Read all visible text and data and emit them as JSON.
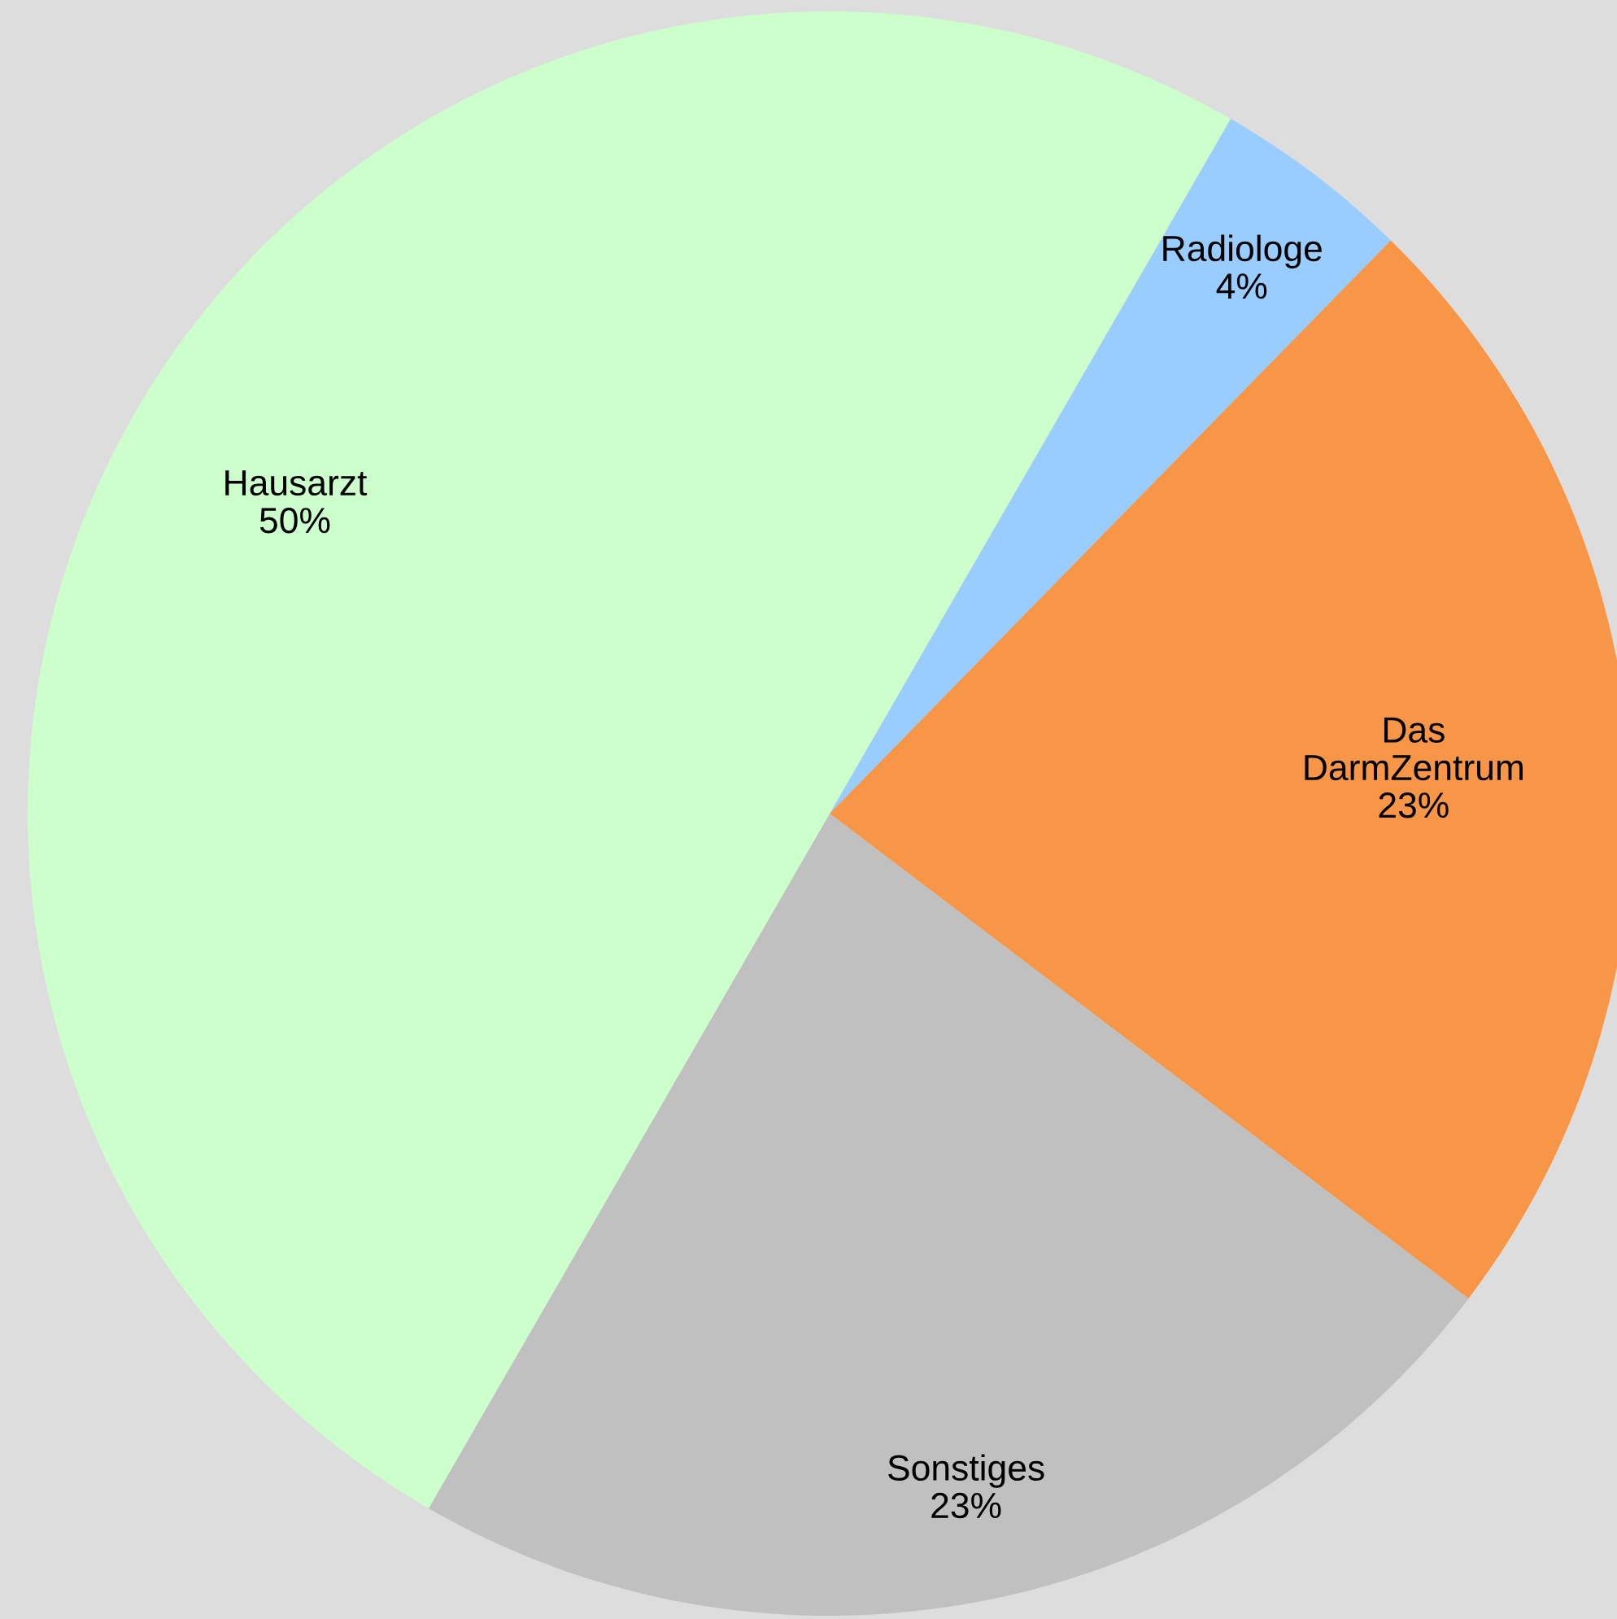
{
  "chart_data": {
    "type": "pie",
    "categories": [
      "Radiologe",
      "Das\nDarmZentrum",
      "Sonstiges",
      "Hausarzt"
    ],
    "values": [
      4,
      23,
      23,
      50
    ],
    "value_labels": [
      "4%",
      "23%",
      "23%",
      "50%"
    ],
    "colors": [
      "#99ccff",
      "#f79646",
      "#c0c0c0",
      "#ccffcc"
    ],
    "legend": false
  }
}
